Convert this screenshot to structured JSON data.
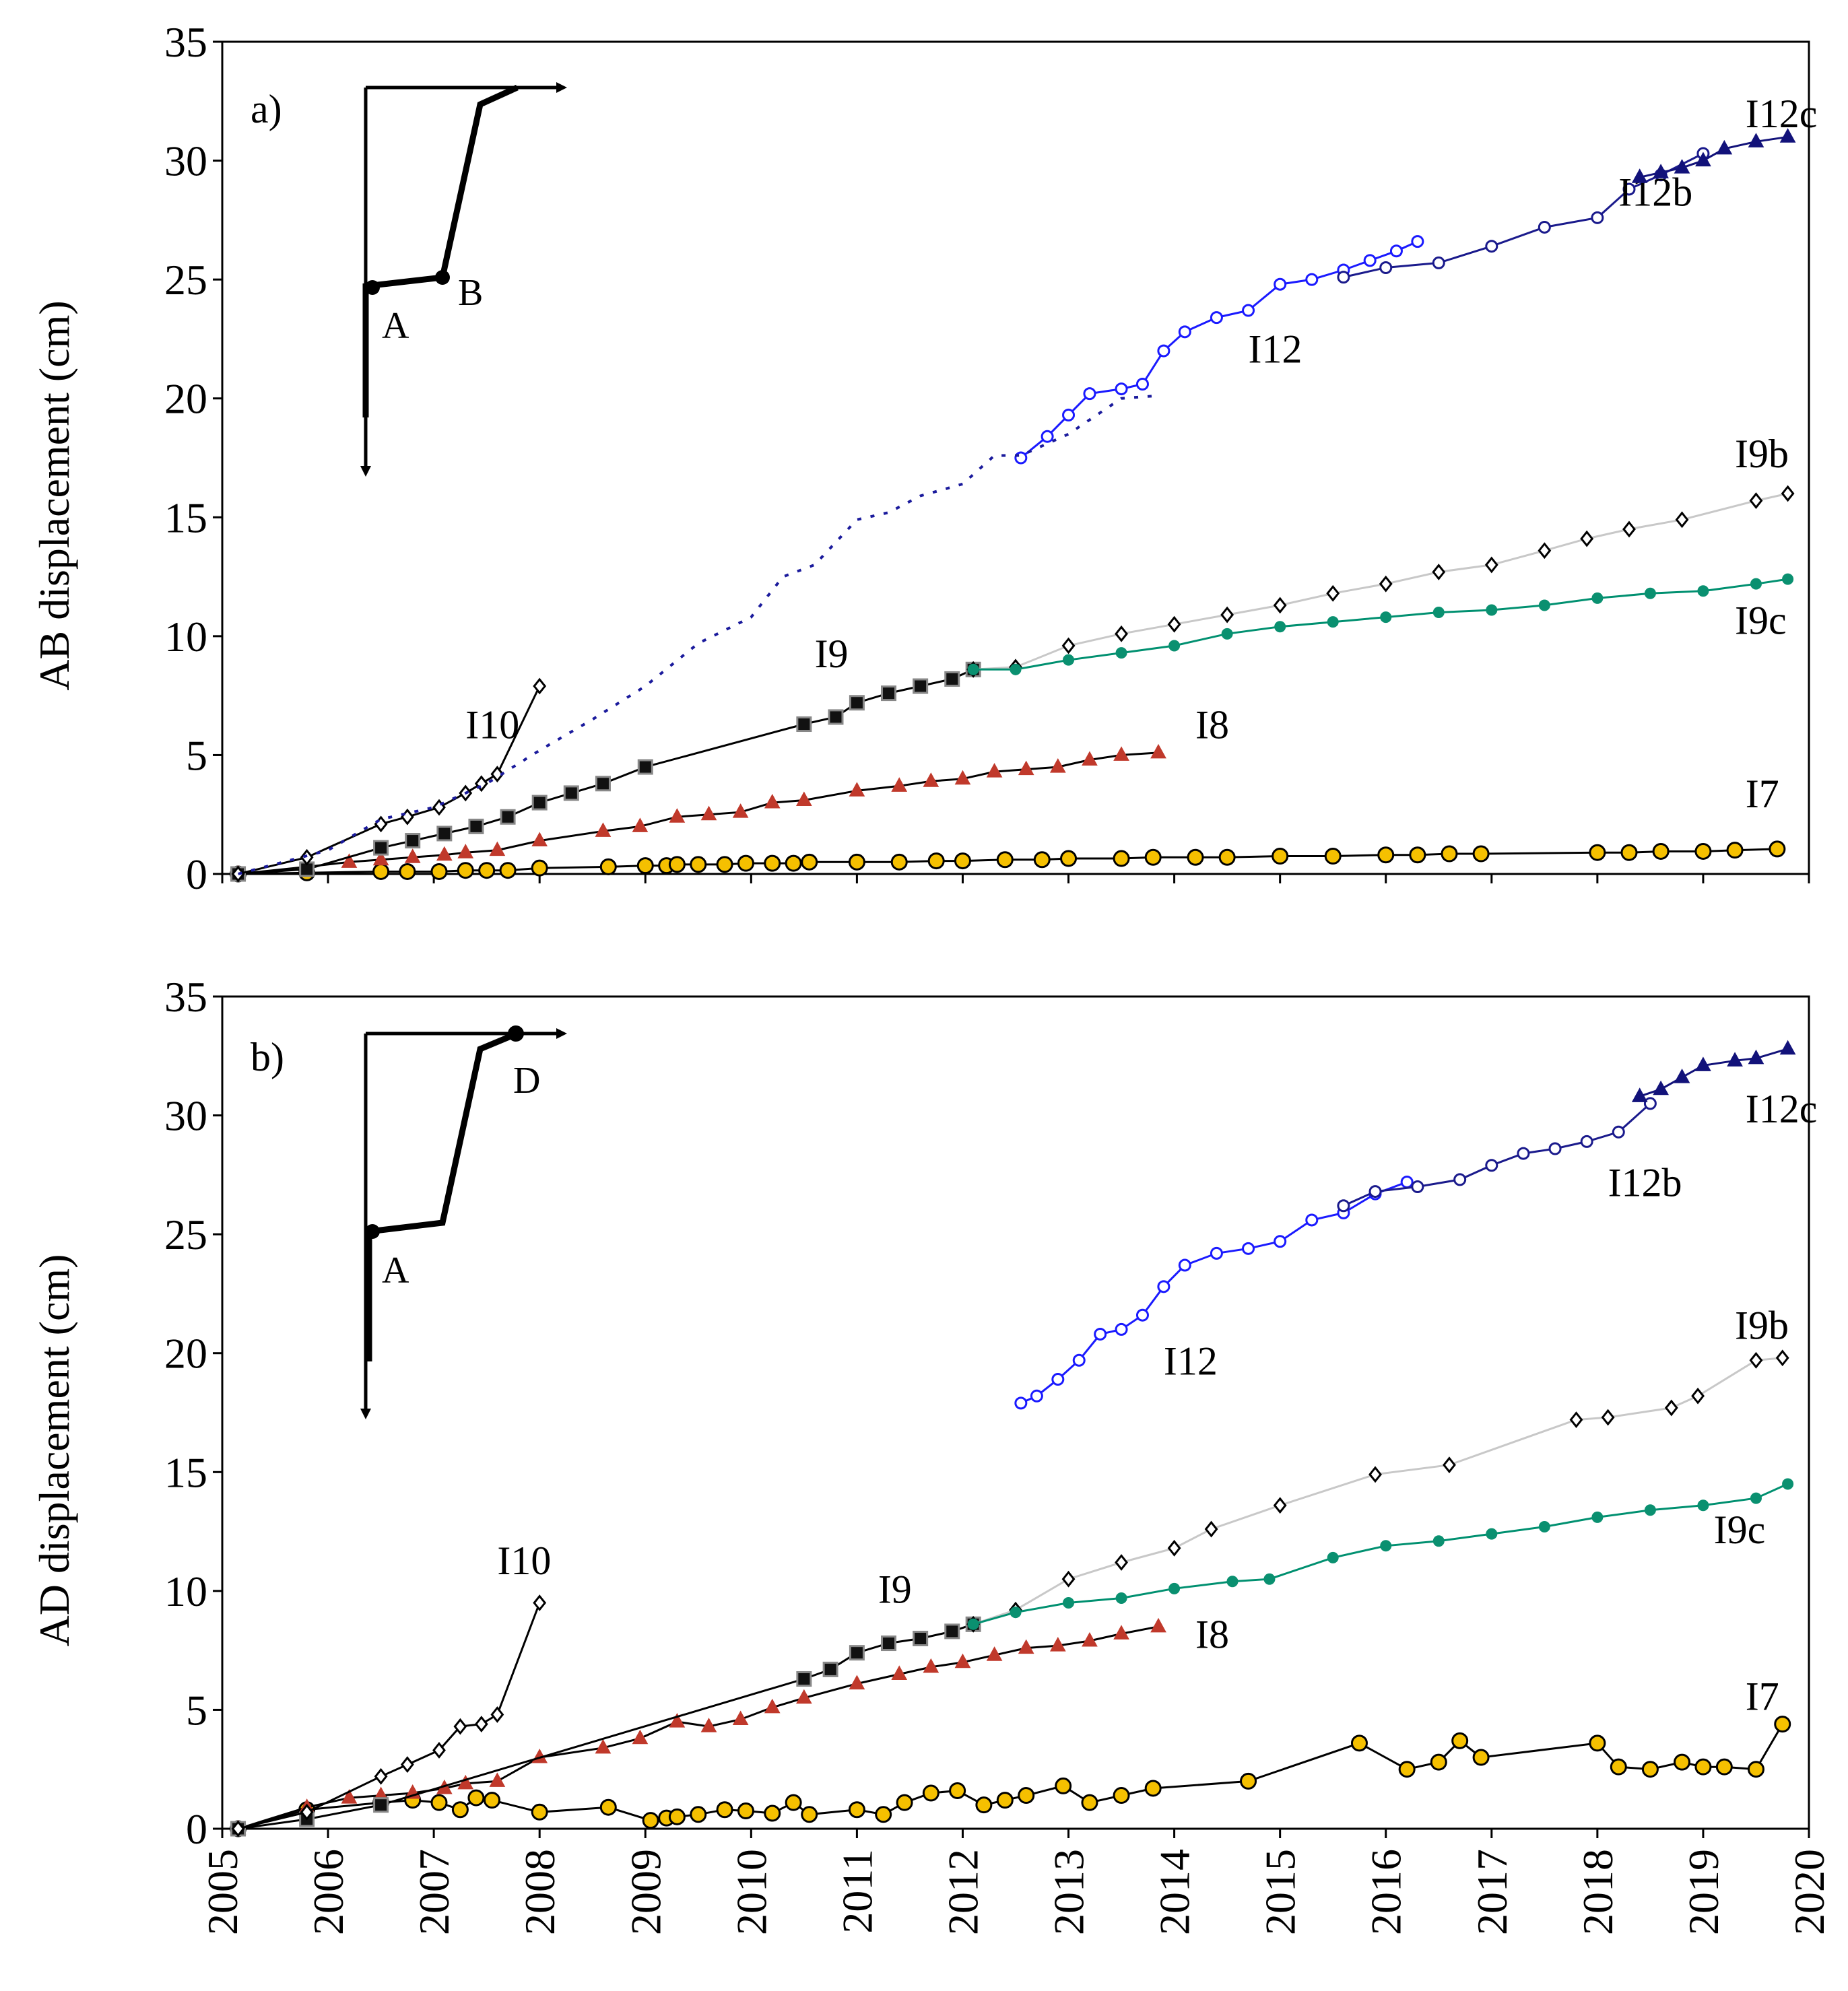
{
  "chart_data": [
    {
      "type": "line",
      "panel_label": "a)",
      "ylabel": "AB displacement (cm)",
      "xlabel": "",
      "xlim": [
        2005,
        2020
      ],
      "ylim": [
        0,
        35
      ],
      "x_ticks": [
        "2005",
        "2006",
        "2007",
        "2008",
        "2009",
        "2010",
        "2011",
        "2012",
        "2013",
        "2014",
        "2015",
        "2016",
        "2017",
        "2018",
        "2019",
        "2020"
      ],
      "y_ticks": [
        "0",
        "5",
        "10",
        "15",
        "20",
        "25",
        "30",
        "35"
      ],
      "inset_labels": [
        "A",
        "B"
      ],
      "series": [
        {
          "name": "I7",
          "label_at": [
            2019.4,
            2.8
          ],
          "x": [
            2005.15,
            2005.8,
            2006.5,
            2006.75,
            2007.05,
            2007.3,
            2007.5,
            2007.7,
            2008.0,
            2008.65,
            2009.0,
            2009.2,
            2009.3,
            2009.5,
            2009.75,
            2009.95,
            2010.2,
            2010.4,
            2010.55,
            2011.0,
            2011.4,
            2011.75,
            2012.0,
            2012.4,
            2012.75,
            2013.0,
            2013.5,
            2013.8,
            2014.2,
            2014.5,
            2015.0,
            2015.5,
            2016.0,
            2016.3,
            2016.6,
            2016.9,
            2018.0,
            2018.3,
            2018.6,
            2019.0,
            2019.3,
            2019.7
          ],
          "values": [
            0.0,
            0.05,
            0.1,
            0.1,
            0.1,
            0.15,
            0.15,
            0.15,
            0.25,
            0.3,
            0.35,
            0.35,
            0.4,
            0.4,
            0.4,
            0.45,
            0.45,
            0.45,
            0.5,
            0.5,
            0.5,
            0.55,
            0.55,
            0.6,
            0.6,
            0.65,
            0.65,
            0.7,
            0.7,
            0.7,
            0.75,
            0.75,
            0.8,
            0.8,
            0.85,
            0.85,
            0.9,
            0.9,
            0.95,
            0.95,
            1.0,
            1.05
          ]
        },
        {
          "name": "I8",
          "label_at": [
            2014.2,
            5.7
          ],
          "x": [
            2005.15,
            2005.8,
            2006.2,
            2006.5,
            2006.8,
            2007.1,
            2007.3,
            2007.6,
            2008.0,
            2008.6,
            2008.95,
            2009.3,
            2009.6,
            2009.9,
            2010.2,
            2010.5,
            2011.0,
            2011.4,
            2011.7,
            2012.0,
            2012.3,
            2012.6,
            2012.9,
            2013.2,
            2013.5,
            2013.85
          ],
          "values": [
            0.0,
            0.3,
            0.5,
            0.6,
            0.7,
            0.8,
            0.9,
            1.0,
            1.4,
            1.8,
            2.0,
            2.4,
            2.5,
            2.6,
            3.0,
            3.1,
            3.5,
            3.7,
            3.9,
            4.0,
            4.3,
            4.4,
            4.5,
            4.8,
            5.0,
            5.1
          ]
        },
        {
          "name": "I9",
          "label_at": [
            2010.6,
            8.7
          ],
          "x": [
            2005.15,
            2005.8,
            2006.5,
            2006.8,
            2007.1,
            2007.4,
            2007.7,
            2008.0,
            2008.3,
            2008.6,
            2009.0,
            2010.5,
            2010.8,
            2011.0,
            2011.3,
            2011.6,
            2011.9,
            2012.1
          ],
          "values": [
            0.0,
            0.2,
            1.1,
            1.4,
            1.7,
            2.0,
            2.4,
            3.0,
            3.4,
            3.8,
            4.5,
            6.3,
            6.6,
            7.2,
            7.6,
            7.9,
            8.2,
            8.6
          ]
        },
        {
          "name": "I9b",
          "label_at": [
            2019.3,
            17.1
          ],
          "x": [
            2012.1,
            2012.5,
            2013.0,
            2013.5,
            2014.0,
            2014.5,
            2015.0,
            2015.5,
            2016.0,
            2016.5,
            2017.0,
            2017.5,
            2017.9,
            2018.3,
            2018.8,
            2019.5,
            2019.8
          ],
          "values": [
            8.6,
            8.7,
            9.6,
            10.1,
            10.5,
            10.9,
            11.3,
            11.8,
            12.2,
            12.7,
            13.0,
            13.6,
            14.1,
            14.5,
            14.9,
            15.7,
            16.0
          ]
        },
        {
          "name": "I9c",
          "label_at": [
            2019.3,
            10.1
          ],
          "x": [
            2012.1,
            2012.5,
            2013.0,
            2013.5,
            2014.0,
            2014.5,
            2015.0,
            2015.5,
            2016.0,
            2016.5,
            2017.0,
            2017.5,
            2018.0,
            2018.5,
            2019.0,
            2019.5,
            2019.8
          ],
          "values": [
            8.6,
            8.6,
            9.0,
            9.3,
            9.6,
            10.1,
            10.4,
            10.6,
            10.8,
            11.0,
            11.1,
            11.3,
            11.6,
            11.8,
            11.9,
            12.2,
            12.4
          ]
        },
        {
          "name": "I10",
          "label_at": [
            2007.3,
            5.7
          ],
          "x": [
            2005.15,
            2005.8,
            2006.5,
            2006.75,
            2007.05,
            2007.3,
            2007.45,
            2007.6,
            2008.0
          ],
          "values": [
            0.0,
            0.7,
            2.1,
            2.4,
            2.8,
            3.4,
            3.8,
            4.2,
            7.9
          ]
        },
        {
          "name": "I12",
          "label_at": [
            2014.7,
            21.5
          ],
          "x": [
            2012.55,
            2012.8,
            2013.0,
            2013.2,
            2013.5,
            2013.7,
            2013.9,
            2014.1,
            2014.4,
            2014.7,
            2015.0,
            2015.3,
            2015.6,
            2015.85,
            2016.1,
            2016.3
          ],
          "values": [
            17.5,
            18.4,
            19.3,
            20.2,
            20.4,
            20.6,
            22.0,
            22.8,
            23.4,
            23.7,
            24.8,
            25.0,
            25.4,
            25.8,
            26.2,
            26.6
          ]
        },
        {
          "name": "I12b",
          "label_at": [
            2018.2,
            28.1
          ],
          "x": [
            2015.6,
            2016.0,
            2016.5,
            2017.0,
            2017.5,
            2018.0,
            2018.3,
            2018.6,
            2019.0
          ],
          "values": [
            25.1,
            25.5,
            25.7,
            26.4,
            27.2,
            27.6,
            28.8,
            29.4,
            30.3
          ]
        },
        {
          "name": "I12c",
          "label_at": [
            2019.4,
            31.4
          ],
          "x": [
            2018.4,
            2018.6,
            2018.8,
            2019.0,
            2019.2,
            2019.5,
            2019.8
          ],
          "values": [
            29.3,
            29.5,
            29.7,
            30.0,
            30.5,
            30.8,
            31.0
          ]
        },
        {
          "name": "dotted trend",
          "unlabeled": true,
          "x": [
            2005.15,
            2006.0,
            2006.5,
            2007.0,
            2007.5,
            2008.0,
            2008.5,
            2009.0,
            2009.5,
            2010.0,
            2010.3,
            2010.6,
            2011.0,
            2011.3,
            2011.6,
            2012.0,
            2012.3,
            2012.55,
            2013.0,
            2013.5,
            2013.8
          ],
          "values": [
            0.0,
            1.0,
            2.3,
            2.8,
            3.8,
            5.2,
            6.5,
            7.9,
            9.7,
            10.8,
            12.5,
            13.0,
            14.9,
            15.2,
            15.9,
            16.4,
            17.6,
            17.6,
            18.5,
            20.0,
            20.1
          ]
        }
      ]
    },
    {
      "type": "line",
      "panel_label": "b)",
      "ylabel": "AD displacement (cm)",
      "xlabel": "",
      "xlim": [
        2005,
        2020
      ],
      "ylim": [
        0,
        35
      ],
      "x_ticks": [
        "2005",
        "2006",
        "2007",
        "2008",
        "2009",
        "2010",
        "2011",
        "2012",
        "2013",
        "2014",
        "2015",
        "2016",
        "2017",
        "2018",
        "2019",
        "2020"
      ],
      "y_ticks": [
        "0",
        "5",
        "10",
        "15",
        "20",
        "25",
        "30",
        "35"
      ],
      "inset_labels": [
        "D",
        "A"
      ],
      "series": [
        {
          "name": "I7",
          "label_at": [
            2019.4,
            5.0
          ],
          "x": [
            2005.15,
            2005.8,
            2006.5,
            2006.8,
            2007.05,
            2007.25,
            2007.4,
            2007.55,
            2008.0,
            2008.65,
            2009.05,
            2009.2,
            2009.3,
            2009.5,
            2009.75,
            2009.95,
            2010.2,
            2010.4,
            2010.55,
            2011.0,
            2011.25,
            2011.45,
            2011.7,
            2011.95,
            2012.2,
            2012.4,
            2012.6,
            2012.95,
            2013.2,
            2013.5,
            2013.8,
            2014.7,
            2015.75,
            2016.2,
            2016.5,
            2016.7,
            2016.9,
            2018.0,
            2018.2,
            2018.5,
            2018.8,
            2019.0,
            2019.2,
            2019.5,
            2019.75
          ],
          "values": [
            0.0,
            0.8,
            1.1,
            1.2,
            1.1,
            0.8,
            1.3,
            1.2,
            0.7,
            0.9,
            0.35,
            0.45,
            0.5,
            0.6,
            0.8,
            0.75,
            0.65,
            1.1,
            0.6,
            0.8,
            0.6,
            1.1,
            1.5,
            1.6,
            1.0,
            1.2,
            1.4,
            1.8,
            1.1,
            1.4,
            1.7,
            2.0,
            3.6,
            2.5,
            2.8,
            3.7,
            3.0,
            3.6,
            2.6,
            2.5,
            2.8,
            2.6,
            2.6,
            2.5,
            4.4
          ]
        },
        {
          "name": "I8",
          "label_at": [
            2014.2,
            7.6
          ],
          "x": [
            2005.15,
            2005.8,
            2006.2,
            2006.5,
            2006.8,
            2007.1,
            2007.3,
            2007.6,
            2008.0,
            2008.6,
            2008.95,
            2009.3,
            2009.6,
            2009.9,
            2010.2,
            2010.5,
            2011.0,
            2011.4,
            2011.7,
            2012.0,
            2012.3,
            2012.6,
            2012.9,
            2013.2,
            2013.5,
            2013.85
          ],
          "values": [
            0.0,
            0.9,
            1.3,
            1.4,
            1.5,
            1.7,
            1.9,
            2.0,
            3.0,
            3.4,
            3.8,
            4.5,
            4.3,
            4.6,
            5.1,
            5.5,
            6.1,
            6.5,
            6.8,
            7.0,
            7.3,
            7.6,
            7.7,
            7.9,
            8.2,
            8.5
          ]
        },
        {
          "name": "I9",
          "label_at": [
            2011.2,
            9.5
          ],
          "x": [
            2005.15,
            2005.8,
            2006.5,
            2010.5,
            2010.75,
            2011.0,
            2011.3,
            2011.6,
            2011.9,
            2012.1
          ],
          "values": [
            0.0,
            0.4,
            1.0,
            6.3,
            6.7,
            7.4,
            7.8,
            8.0,
            8.3,
            8.6
          ]
        },
        {
          "name": "I9b",
          "label_at": [
            2019.3,
            20.6
          ],
          "x": [
            2012.1,
            2012.5,
            2013.0,
            2013.5,
            2014.0,
            2014.35,
            2015.0,
            2015.9,
            2016.6,
            2017.8,
            2018.1,
            2018.7,
            2018.95,
            2019.5,
            2019.75
          ],
          "values": [
            8.6,
            9.2,
            10.5,
            11.2,
            11.8,
            12.6,
            13.6,
            14.9,
            15.3,
            17.2,
            17.3,
            17.7,
            18.2,
            19.7,
            19.8
          ]
        },
        {
          "name": "I9c",
          "label_at": [
            2019.1,
            12.0
          ],
          "x": [
            2012.1,
            2012.5,
            2013.0,
            2013.5,
            2014.0,
            2014.55,
            2014.9,
            2015.5,
            2016.0,
            2016.5,
            2017.0,
            2017.5,
            2018.0,
            2018.5,
            2019.0,
            2019.5,
            2019.8
          ],
          "values": [
            8.6,
            9.1,
            9.5,
            9.7,
            10.1,
            10.4,
            10.5,
            11.4,
            11.9,
            12.1,
            12.4,
            12.7,
            13.1,
            13.4,
            13.6,
            13.9,
            14.5
          ]
        },
        {
          "name": "I10",
          "label_at": [
            2007.6,
            10.7
          ],
          "x": [
            2005.15,
            2005.8,
            2006.5,
            2006.75,
            2007.05,
            2007.25,
            2007.45,
            2007.6,
            2008.0
          ],
          "values": [
            0.0,
            0.7,
            2.2,
            2.7,
            3.3,
            4.3,
            4.4,
            4.8,
            9.5
          ]
        },
        {
          "name": "I12",
          "label_at": [
            2013.9,
            19.1
          ],
          "x": [
            2012.55,
            2012.7,
            2012.9,
            2013.1,
            2013.3,
            2013.5,
            2013.7,
            2013.9,
            2014.1,
            2014.4,
            2014.7,
            2015.0,
            2015.3,
            2015.6,
            2015.9,
            2016.2
          ],
          "values": [
            17.9,
            18.2,
            18.9,
            19.7,
            20.8,
            21.0,
            21.6,
            22.8,
            23.7,
            24.2,
            24.4,
            24.7,
            25.6,
            25.9,
            26.7,
            27.2
          ]
        },
        {
          "name": "I12b",
          "label_at": [
            2018.1,
            26.6
          ],
          "x": [
            2015.6,
            2015.9,
            2016.3,
            2016.7,
            2017.0,
            2017.3,
            2017.6,
            2017.9,
            2018.2,
            2018.5
          ],
          "values": [
            26.2,
            26.8,
            27.0,
            27.3,
            27.9,
            28.4,
            28.6,
            28.9,
            29.3,
            30.5
          ]
        },
        {
          "name": "I12c",
          "label_at": [
            2019.4,
            29.7
          ],
          "x": [
            2018.4,
            2018.6,
            2018.8,
            2019.0,
            2019.3,
            2019.5,
            2019.8
          ],
          "values": [
            30.8,
            31.1,
            31.6,
            32.1,
            32.3,
            32.4,
            32.8
          ]
        }
      ]
    }
  ],
  "styles": {
    "I7": {
      "line": "#000000",
      "marker": "circle",
      "fill": "#f5c000",
      "stroke": "#000000",
      "dash": ""
    },
    "I8": {
      "line": "#000000",
      "marker": "triangle",
      "fill": "#c0392b",
      "stroke": "#c0392b",
      "dash": ""
    },
    "I9": {
      "line": "#000000",
      "marker": "square",
      "fill": "#111111",
      "stroke": "#888888",
      "dash": ""
    },
    "I9b": {
      "line": "#c8c8c8",
      "marker": "diamond",
      "fill": "#ffffff",
      "stroke": "#000000",
      "dash": ""
    },
    "I9c": {
      "line": "#009070",
      "marker": "dot",
      "fill": "#0a9070",
      "stroke": "#0a9070",
      "dash": ""
    },
    "I10": {
      "line": "#000000",
      "marker": "diamond",
      "fill": "#ffffff",
      "stroke": "#000000",
      "dash": ""
    },
    "I12": {
      "line": "#1a1aff",
      "marker": "circle-open",
      "fill": "#ffffff",
      "stroke": "#1a1aff",
      "dash": ""
    },
    "I12b": {
      "line": "#1a1a8c",
      "marker": "circle-open",
      "fill": "#ffffff",
      "stroke": "#1a1a8c",
      "dash": ""
    },
    "I12c": {
      "line": "#12127a",
      "marker": "triangle",
      "fill": "#12127a",
      "stroke": "#12127a",
      "dash": ""
    },
    "dotted trend": {
      "line": "#1a1a9c",
      "marker": "none",
      "fill": "none",
      "stroke": "none",
      "dash": "6,14"
    }
  }
}
